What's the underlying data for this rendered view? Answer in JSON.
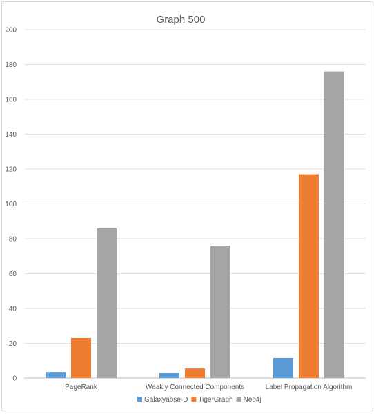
{
  "chart_data": {
    "type": "bar",
    "title": "Graph 500",
    "xlabel": "",
    "ylabel": "",
    "categories": [
      "PageRank",
      "Weakly Connected Components",
      "Label Propagation Algorithm"
    ],
    "series": [
      {
        "name": "Galaxyabse-D",
        "color": "#5b9bd5",
        "values": [
          3.5,
          3,
          11.5
        ]
      },
      {
        "name": "TigerGraph",
        "color": "#ed7d31",
        "values": [
          23,
          5.5,
          117
        ]
      },
      {
        "name": "Neo4j",
        "color": "#a5a5a5",
        "values": [
          86,
          76,
          176
        ]
      }
    ],
    "ylim": [
      0,
      200
    ],
    "yticks": [
      "0",
      "20",
      "40",
      "60",
      "80",
      "100",
      "120",
      "140",
      "160",
      "180",
      "200"
    ],
    "grid": true,
    "legend_position": "bottom"
  }
}
